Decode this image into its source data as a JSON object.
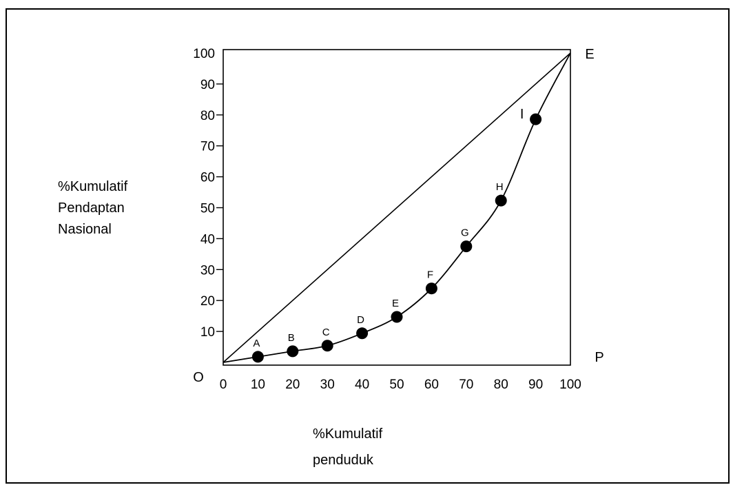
{
  "chart_data": {
    "type": "line",
    "x_ticks": [
      "0",
      "10",
      "20",
      "30",
      "40",
      "50",
      "60",
      "70",
      "80",
      "90",
      "100"
    ],
    "y_ticks": [
      "10",
      "20",
      "30",
      "40",
      "50",
      "60",
      "70",
      "80",
      "90",
      "100"
    ],
    "xlim": [
      0,
      100
    ],
    "ylim": [
      0,
      100
    ],
    "xlabel_lines": [
      "%Kumulatif",
      "penduduk"
    ],
    "ylabel_lines": [
      "%Kumulatif",
      "Pendaptan",
      "Nasional"
    ],
    "corner_labels": {
      "origin": "O",
      "top_right": "E",
      "bottom_right": "P"
    },
    "series": [
      {
        "x": [
          0,
          10,
          20,
          30,
          40,
          50,
          60,
          70,
          80,
          90,
          100
        ],
        "y": [
          0,
          1.8,
          3.6,
          5.4,
          9.4,
          14.7,
          23.9,
          37.5,
          52.3,
          78.6,
          100
        ],
        "style": "curve"
      },
      {
        "x": [
          0,
          100
        ],
        "y": [
          0,
          100
        ],
        "style": "straight"
      }
    ],
    "points": [
      {
        "label": "A",
        "x": 10,
        "y": 1.8
      },
      {
        "label": "B",
        "x": 20,
        "y": 3.6
      },
      {
        "label": "C",
        "x": 30,
        "y": 5.4
      },
      {
        "label": "D",
        "x": 40,
        "y": 9.4
      },
      {
        "label": "E",
        "x": 50,
        "y": 14.7
      },
      {
        "label": "F",
        "x": 60,
        "y": 23.9
      },
      {
        "label": "G",
        "x": 70,
        "y": 37.5
      },
      {
        "label": "H",
        "x": 80,
        "y": 52.3
      },
      {
        "label": "I",
        "x": 90,
        "y": 78.6
      }
    ],
    "grid": false,
    "colors": {
      "line": "#000000",
      "marker": "#000000"
    }
  }
}
